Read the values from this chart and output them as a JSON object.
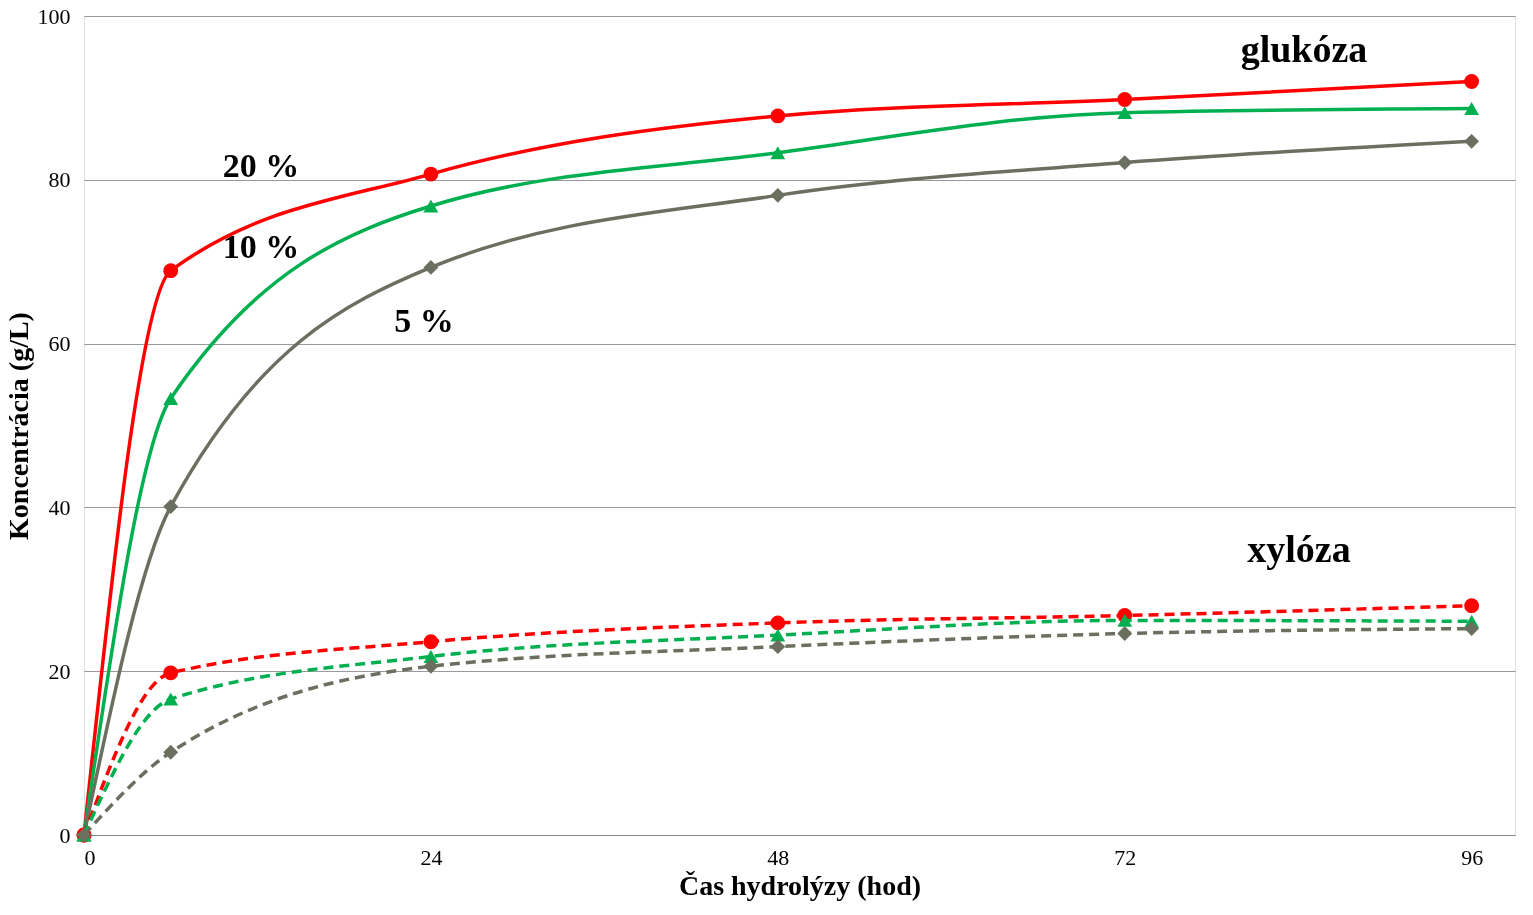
{
  "chart_data": {
    "type": "line",
    "xlabel": "Čas hydrolýzy (hod)",
    "ylabel": "Koncentrácia (g/L)",
    "x": [
      0,
      6,
      24,
      48,
      72,
      96
    ],
    "series": [
      {
        "name": "20 %",
        "color": "#ff0000",
        "marker": "circle",
        "line_style": "solid",
        "values": [
          0,
          68.9,
          80.7,
          87.8,
          89.8,
          92.0
        ]
      },
      {
        "name": "10 %",
        "color": "#00b050",
        "marker": "triangle",
        "line_style": "solid",
        "values": [
          0,
          53.3,
          76.8,
          83.3,
          88.2,
          88.7
        ]
      },
      {
        "name": "5 %",
        "color": "#6b6f5f",
        "marker": "diamond",
        "line_style": "solid",
        "values": [
          0,
          40.1,
          69.3,
          78.1,
          82.1,
          84.7
        ]
      },
      {
        "color": "#ff0000",
        "marker": "circle",
        "line_style": "dashed",
        "values": [
          0,
          19.8,
          23.6,
          25.9,
          26.8,
          28.0
        ]
      },
      {
        "color": "#00b050",
        "marker": "triangle",
        "line_style": "dashed",
        "values": [
          0,
          16.6,
          21.8,
          24.4,
          26.2,
          26.1
        ]
      },
      {
        "color": "#6b6f5f",
        "marker": "diamond",
        "line_style": "dashed",
        "values": [
          0,
          10.1,
          20.6,
          23.0,
          24.6,
          25.2
        ]
      }
    ],
    "annotations": [
      "glukóza",
      "xylóza"
    ],
    "xlim": [
      0,
      99
    ],
    "xticks": [
      0,
      24,
      48,
      72,
      96
    ],
    "ylim": [
      0,
      100
    ],
    "yticks": [
      0,
      20,
      40,
      60,
      80,
      100
    ],
    "grid": "y"
  }
}
